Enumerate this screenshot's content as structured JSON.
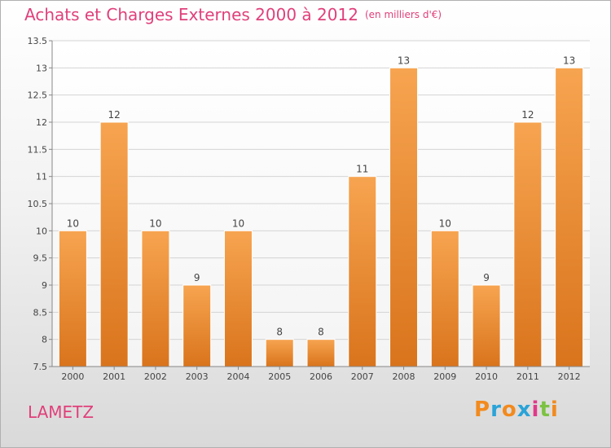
{
  "title": "Achats et Charges Externes 2000 à 2012",
  "subtitle": "(en milliers d'€)",
  "commune": "LAMETZ",
  "logo_text": "Proxiti",
  "colors": {
    "title": "#e0407a",
    "bar_top": "#f7a450",
    "bar_bottom": "#d9741c",
    "logo_letters": [
      "#f28a1e",
      "#2aa3d8",
      "#f28a1e",
      "#2aa3d8",
      "#e03a8a",
      "#7cc242",
      "#f28a1e"
    ]
  },
  "chart_data": {
    "type": "bar",
    "title": "Achats et Charges Externes 2000 à 2012",
    "categories": [
      "2000",
      "2001",
      "2002",
      "2003",
      "2004",
      "2005",
      "2006",
      "2007",
      "2008",
      "2009",
      "2010",
      "2011",
      "2012"
    ],
    "values": [
      10,
      12,
      10,
      9,
      10,
      8,
      8,
      11,
      13,
      10,
      9,
      12,
      13
    ],
    "data_labels": [
      "10",
      "12",
      "10",
      "9",
      "10",
      "8",
      "8",
      "11",
      "13",
      "10",
      "9",
      "12",
      "13"
    ],
    "ylim": [
      7.5,
      13.5
    ],
    "yticks": [
      7.5,
      8,
      8.5,
      9,
      9.5,
      10,
      10.5,
      11,
      11.5,
      12,
      12.5,
      13,
      13.5
    ],
    "ytick_labels": [
      "7.5",
      "8",
      "8.5",
      "9",
      "9.5",
      "10",
      "10.5",
      "11",
      "11.5",
      "12",
      "12.5",
      "13",
      "13.5"
    ],
    "grid": true,
    "xlabel": "",
    "ylabel": ""
  }
}
